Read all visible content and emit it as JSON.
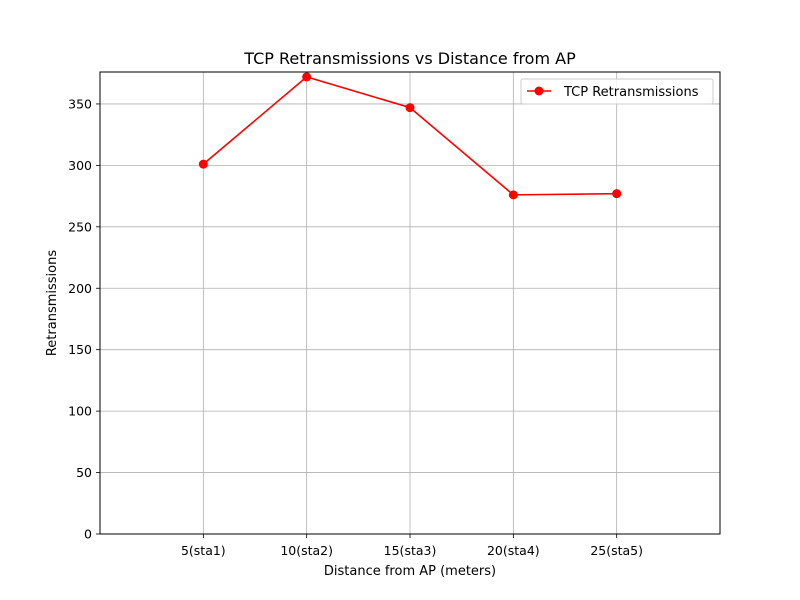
{
  "chart_data": {
    "type": "line",
    "title": "TCP Retransmissions vs Distance from AP",
    "xlabel": "Distance from AP (meters)",
    "ylabel": "Retransmissions",
    "categories": [
      "5(sta1)",
      "10(sta2)",
      "15(sta3)",
      "20(sta4)",
      "25(sta5)"
    ],
    "series": [
      {
        "name": "TCP Retransmissions",
        "values": [
          301,
          372,
          347,
          276,
          277
        ],
        "color": "#ff0000",
        "marker": "circle"
      }
    ],
    "ylim": [
      0,
      376
    ],
    "yticks": [
      0,
      50,
      100,
      150,
      200,
      250,
      300,
      350
    ],
    "grid": true,
    "legend": "top-right"
  }
}
